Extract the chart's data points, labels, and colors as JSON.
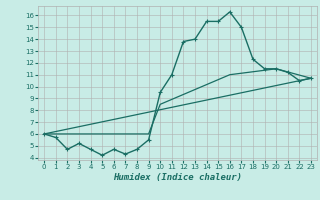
{
  "title": "",
  "xlabel": "Humidex (Indice chaleur)",
  "bg_color": "#c8ece6",
  "grid_color": "#b0b0b0",
  "line_color": "#1a6e64",
  "xlim": [
    -0.5,
    23.5
  ],
  "ylim": [
    3.8,
    16.8
  ],
  "xticks": [
    0,
    1,
    2,
    3,
    4,
    5,
    6,
    7,
    8,
    9,
    10,
    11,
    12,
    13,
    14,
    15,
    16,
    17,
    18,
    19,
    20,
    21,
    22,
    23
  ],
  "yticks": [
    4,
    5,
    6,
    7,
    8,
    9,
    10,
    11,
    12,
    13,
    14,
    15,
    16
  ],
  "line1_x": [
    0,
    1,
    2,
    3,
    4,
    5,
    6,
    7,
    8,
    9,
    10,
    11,
    12,
    13,
    14,
    15,
    16,
    17,
    18,
    19,
    20,
    21,
    22,
    23
  ],
  "line1_y": [
    6.0,
    5.7,
    4.7,
    5.2,
    4.7,
    4.2,
    4.7,
    4.3,
    4.7,
    5.5,
    9.5,
    11.0,
    13.8,
    14.0,
    15.5,
    15.5,
    16.3,
    15.0,
    12.3,
    11.5,
    11.5,
    11.2,
    10.5,
    10.7
  ],
  "line2_x": [
    0,
    23
  ],
  "line2_y": [
    6.0,
    10.7
  ],
  "line3_x": [
    0,
    9,
    10,
    16,
    20,
    23
  ],
  "line3_y": [
    6.0,
    6.0,
    8.5,
    11.0,
    11.5,
    10.7
  ]
}
